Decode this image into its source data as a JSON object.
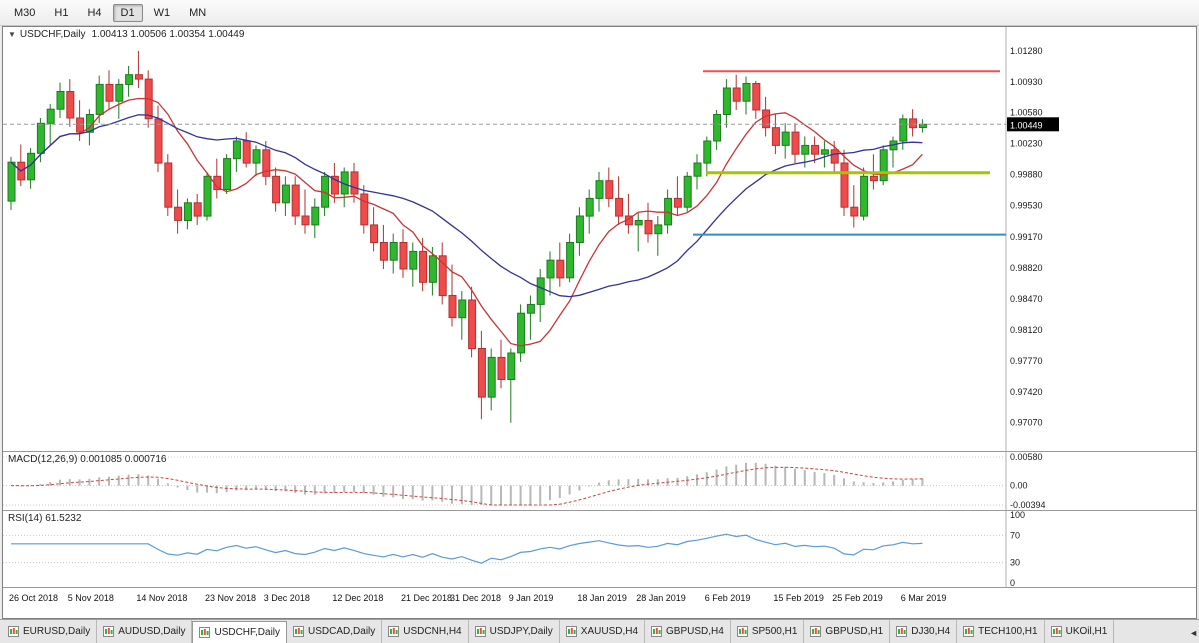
{
  "colors": {
    "up": "#2eb82e",
    "up_stroke": "#1e7a1e",
    "down": "#ef4b4b",
    "down_stroke": "#b33030",
    "ma_fast": "#cc3333",
    "ma_slow": "#333399",
    "macd_hist": "#b8b8b8",
    "macd_signal": "#cc4444",
    "rsi_line": "#5b9bd5",
    "tag_bg": "#000000",
    "tag_text": "#ffffff"
  },
  "toolbar": {
    "buttons": [
      {
        "label": "M30",
        "active": false
      },
      {
        "label": "H1",
        "active": false
      },
      {
        "label": "H4",
        "active": false
      },
      {
        "label": "D1",
        "active": true
      },
      {
        "label": "W1",
        "active": false
      },
      {
        "label": "MN",
        "active": false
      }
    ]
  },
  "chart": {
    "symbol_label": "USDCHF,Daily",
    "ohlc_label": "1.00413 1.00506 1.00354 1.00449",
    "current_price": "1.00449",
    "menu_icon": "▼",
    "price_ticks": [
      "1.01280",
      "1.00930",
      "1.00580",
      "1.00230",
      "0.99880",
      "0.99530",
      "0.99170",
      "0.98820",
      "0.98470",
      "0.98120",
      "0.97770",
      "0.97420",
      "0.97070"
    ]
  },
  "chart_data": {
    "type": "candlestick",
    "symbol": "USDCHF",
    "timeframe": "Daily",
    "title": "USDCHF,Daily",
    "ohlc_current": {
      "open": 1.00413,
      "high": 1.00506,
      "low": 1.00354,
      "close": 1.00449
    },
    "current_close": 1.00449,
    "y_scale": {
      "max": 1.0155,
      "min": 0.9675
    },
    "x_ticks": [
      {
        "label": "26 Oct 2018",
        "index": 0
      },
      {
        "label": "5 Nov 2018",
        "index": 6
      },
      {
        "label": "14 Nov 2018",
        "index": 13
      },
      {
        "label": "23 Nov 2018",
        "index": 20
      },
      {
        "label": "3 Dec 2018",
        "index": 26
      },
      {
        "label": "12 Dec 2018",
        "index": 33
      },
      {
        "label": "21 Dec 2018",
        "index": 40
      },
      {
        "label": "31 Dec 2018",
        "index": 45
      },
      {
        "label": "9 Jan 2019",
        "index": 51
      },
      {
        "label": "18 Jan 2019",
        "index": 58
      },
      {
        "label": "28 Jan 2019",
        "index": 64
      },
      {
        "label": "6 Feb 2019",
        "index": 71
      },
      {
        "label": "15 Feb 2019",
        "index": 78
      },
      {
        "label": "25 Feb 2019",
        "index": 84
      },
      {
        "label": "6 Mar 2019",
        "index": 91
      }
    ],
    "overlays": {
      "ma_fast_period": 8,
      "ma_slow_period": 21,
      "hlines": [
        {
          "name": "resistance-line",
          "price": 1.0105,
          "color": "#f05050",
          "width": 2,
          "x1": 700,
          "x2": 997
        },
        {
          "name": "pivot-line",
          "price": 0.999,
          "color": "#a8c400",
          "width": 3,
          "x1": 703,
          "x2": 987
        },
        {
          "name": "support-line",
          "price": 0.992,
          "color": "#2f8fc5",
          "width": 2,
          "x1": 690,
          "x2": 1003
        }
      ]
    },
    "candles": [
      [
        0.9958,
        1.0008,
        0.9948,
        1.0002
      ],
      [
        1.0002,
        1.0022,
        0.9975,
        0.9982
      ],
      [
        0.9982,
        1.0018,
        0.9972,
        1.0012
      ],
      [
        1.0012,
        1.0052,
        1.0002,
        1.0046
      ],
      [
        1.0046,
        1.0068,
        1.0022,
        1.0062
      ],
      [
        1.0062,
        1.0092,
        1.0052,
        1.0082
      ],
      [
        1.0082,
        1.0096,
        1.0042,
        1.0052
      ],
      [
        1.0052,
        1.0072,
        1.0026,
        1.0036
      ],
      [
        1.0036,
        1.0062,
        1.0021,
        1.0056
      ],
      [
        1.0056,
        1.01,
        1.0046,
        1.009
      ],
      [
        1.009,
        1.0106,
        1.0061,
        1.0071
      ],
      [
        1.0071,
        1.0096,
        1.0051,
        1.009
      ],
      [
        1.009,
        1.0111,
        1.0076,
        1.0101
      ],
      [
        1.0101,
        1.0128,
        1.0086,
        1.0096
      ],
      [
        1.0096,
        1.0106,
        1.0041,
        1.0051
      ],
      [
        1.0051,
        1.0066,
        0.9991,
        1.0001
      ],
      [
        1.0001,
        1.0011,
        0.9941,
        0.9951
      ],
      [
        0.9951,
        0.9971,
        0.9921,
        0.9936
      ],
      [
        0.9936,
        0.9961,
        0.9926,
        0.9956
      ],
      [
        0.9956,
        0.9966,
        0.9931,
        0.9941
      ],
      [
        0.9941,
        0.9991,
        0.9936,
        0.9986
      ],
      [
        0.9986,
        1.0006,
        0.9961,
        0.9971
      ],
      [
        0.9971,
        1.0011,
        0.9966,
        1.0006
      ],
      [
        1.0006,
        1.0031,
        0.9991,
        1.0026
      ],
      [
        1.0026,
        1.0036,
        0.9996,
        1.0001
      ],
      [
        1.0001,
        1.0021,
        0.9986,
        1.0016
      ],
      [
        1.0016,
        1.0026,
        0.9976,
        0.9986
      ],
      [
        0.9986,
        0.9996,
        0.9946,
        0.9956
      ],
      [
        0.9956,
        0.9986,
        0.9941,
        0.9976
      ],
      [
        0.9976,
        0.9986,
        0.9931,
        0.9941
      ],
      [
        0.9941,
        0.9971,
        0.9921,
        0.9931
      ],
      [
        0.9931,
        0.9961,
        0.9916,
        0.9951
      ],
      [
        0.9951,
        0.9991,
        0.9941,
        0.9986
      ],
      [
        0.9986,
        1.0001,
        0.9956,
        0.9966
      ],
      [
        0.9966,
        0.9996,
        0.9951,
        0.9991
      ],
      [
        0.9991,
        1.0001,
        0.9956,
        0.9966
      ],
      [
        0.9966,
        0.9976,
        0.9921,
        0.9931
      ],
      [
        0.9931,
        0.9951,
        0.9901,
        0.9911
      ],
      [
        0.9911,
        0.9931,
        0.9881,
        0.9891
      ],
      [
        0.9891,
        0.9921,
        0.9876,
        0.9911
      ],
      [
        0.9911,
        0.9926,
        0.9871,
        0.9881
      ],
      [
        0.9881,
        0.9911,
        0.9861,
        0.9901
      ],
      [
        0.9901,
        0.9916,
        0.9856,
        0.9866
      ],
      [
        0.9866,
        0.9906,
        0.9851,
        0.9896
      ],
      [
        0.9896,
        0.9911,
        0.9841,
        0.9851
      ],
      [
        0.9851,
        0.9886,
        0.9816,
        0.9826
      ],
      [
        0.9826,
        0.9856,
        0.9801,
        0.9846
      ],
      [
        0.9846,
        0.9861,
        0.9781,
        0.9791
      ],
      [
        0.9791,
        0.9811,
        0.9711,
        0.9736
      ],
      [
        0.9736,
        0.9791,
        0.9721,
        0.9781
      ],
      [
        0.9781,
        0.9801,
        0.9746,
        0.9756
      ],
      [
        0.9756,
        0.9791,
        0.9707,
        0.9786
      ],
      [
        0.9786,
        0.9841,
        0.9776,
        0.9831
      ],
      [
        0.9831,
        0.9851,
        0.9801,
        0.9841
      ],
      [
        0.9841,
        0.9881,
        0.9821,
        0.9871
      ],
      [
        0.9871,
        0.9901,
        0.9851,
        0.9891
      ],
      [
        0.9891,
        0.9911,
        0.9861,
        0.9871
      ],
      [
        0.9871,
        0.9921,
        0.9866,
        0.9911
      ],
      [
        0.9911,
        0.9951,
        0.9896,
        0.9941
      ],
      [
        0.9941,
        0.9971,
        0.9921,
        0.9961
      ],
      [
        0.9961,
        0.9991,
        0.9946,
        0.9981
      ],
      [
        0.9981,
        0.9996,
        0.9951,
        0.9961
      ],
      [
        0.9961,
        0.9986,
        0.9931,
        0.9941
      ],
      [
        0.9941,
        0.9966,
        0.9921,
        0.9931
      ],
      [
        0.9931,
        0.9946,
        0.9901,
        0.9936
      ],
      [
        0.9936,
        0.9956,
        0.9911,
        0.9921
      ],
      [
        0.9921,
        0.9941,
        0.9896,
        0.9931
      ],
      [
        0.9931,
        0.9971,
        0.9921,
        0.9961
      ],
      [
        0.9961,
        0.9986,
        0.9941,
        0.9951
      ],
      [
        0.9951,
        0.9991,
        0.9946,
        0.9986
      ],
      [
        0.9986,
        1.0011,
        0.9971,
        1.0001
      ],
      [
        1.0001,
        1.0031,
        0.9986,
        1.0026
      ],
      [
        1.0026,
        1.0061,
        1.0016,
        1.0056
      ],
      [
        1.0056,
        1.0096,
        1.0041,
        1.0086
      ],
      [
        1.0086,
        1.0101,
        1.0061,
        1.0071
      ],
      [
        1.0071,
        1.0099,
        1.0056,
        1.0091
      ],
      [
        1.0091,
        1.0094,
        1.0051,
        1.0061
      ],
      [
        1.0061,
        1.0076,
        1.0031,
        1.0041
      ],
      [
        1.0041,
        1.0056,
        1.0011,
        1.0021
      ],
      [
        1.0021,
        1.0046,
        1.0006,
        1.0036
      ],
      [
        1.0036,
        1.0046,
        1.0001,
        1.0011
      ],
      [
        1.0011,
        1.0031,
        0.9996,
        1.0021
      ],
      [
        1.0021,
        1.0031,
        1.0001,
        1.0011
      ],
      [
        1.0011,
        1.0026,
        0.9996,
        1.0016
      ],
      [
        1.0016,
        1.0026,
        0.9991,
        1.0001
      ],
      [
        1.0001,
        1.0016,
        0.9941,
        0.9951
      ],
      [
        0.9951,
        0.9976,
        0.9928,
        0.9941
      ],
      [
        0.9941,
        0.9996,
        0.9936,
        0.9986
      ],
      [
        0.9986,
        1.0011,
        0.9971,
        0.9981
      ],
      [
        0.9981,
        1.0021,
        0.9976,
        1.0016
      ],
      [
        1.0016,
        1.0031,
        0.9996,
        1.0026
      ],
      [
        1.0026,
        1.0056,
        1.0016,
        1.0051
      ],
      [
        1.0051,
        1.0062,
        1.0031,
        1.0041
      ],
      [
        1.00413,
        1.00506,
        1.00354,
        1.00449
      ]
    ]
  },
  "macd": {
    "title": "MACD(12,26,9) 0.001085 0.000716",
    "params": [
      12,
      26,
      9
    ],
    "value": "0.001085",
    "signal": "0.000716",
    "scale_ticks": [
      "0.00580",
      "0.00",
      "-0.00394"
    ],
    "scale_max": 0.0058,
    "scale_min": -0.00394
  },
  "rsi": {
    "title": "RSI(14) 61.5232",
    "period": 14,
    "value": "61.5232",
    "scale_ticks": [
      "100",
      "70",
      "30",
      "0"
    ],
    "levels": [
      70,
      30
    ]
  },
  "tabs": [
    {
      "label": "EURUSD,Daily",
      "active": false
    },
    {
      "label": "AUDUSD,Daily",
      "active": false
    },
    {
      "label": "USDCHF,Daily",
      "active": true
    },
    {
      "label": "USDCAD,Daily",
      "active": false
    },
    {
      "label": "USDCNH,H4",
      "active": false
    },
    {
      "label": "USDJPY,Daily",
      "active": false
    },
    {
      "label": "XAUUSD,H4",
      "active": false
    },
    {
      "label": "GBPUSD,H4",
      "active": false
    },
    {
      "label": "SP500,H1",
      "active": false
    },
    {
      "label": "GBPUSD,H1",
      "active": false
    },
    {
      "label": "DJ30,H4",
      "active": false
    },
    {
      "label": "TECH100,H1",
      "active": false
    },
    {
      "label": "UKOil,H1",
      "active": false
    }
  ],
  "tab_scroll_icon": "◄"
}
